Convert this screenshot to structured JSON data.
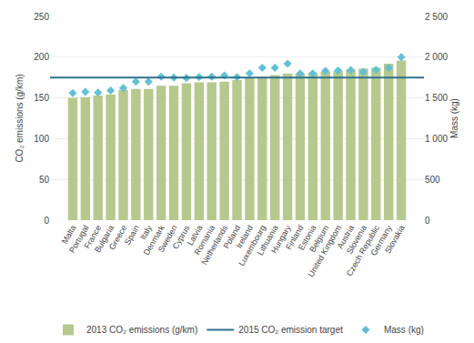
{
  "chart_data": {
    "type": "bar",
    "categories": [
      "Malta",
      "Portugal",
      "France",
      "Bulgaria",
      "Greece",
      "Spain",
      "Italy",
      "Denmark",
      "Sweden",
      "Cyprus",
      "Latvia",
      "Romania",
      "Netherlands",
      "Poland",
      "Ireland",
      "Luxembourg",
      "Lithuania",
      "Hungary",
      "Finland",
      "Estonia",
      "Belgium",
      "United Kingdom",
      "Austria",
      "Slovenia",
      "Czech Republic",
      "Germany",
      "Slovakia"
    ],
    "series": [
      {
        "name": "2013 CO₂ emissions (g/km)",
        "type": "bar",
        "color": "#b5c98e",
        "values": [
          150,
          151,
          153,
          154,
          160,
          161,
          161,
          165,
          165,
          168,
          169,
          169,
          170,
          172,
          175,
          176,
          178,
          180,
          180,
          181,
          182,
          183,
          185,
          186,
          187,
          192,
          196
        ]
      },
      {
        "name": "2015 CO₂ emission target",
        "type": "hline",
        "color": "#2e718e",
        "value": 175
      },
      {
        "name": "Mass (kg)",
        "type": "scatter",
        "marker": "diamond",
        "color": "#62c0d4",
        "axis": "y2",
        "values": [
          1560,
          1575,
          1565,
          1590,
          1620,
          1700,
          1700,
          1760,
          1750,
          1745,
          1755,
          1760,
          1775,
          1755,
          1800,
          1870,
          1870,
          1920,
          1800,
          1800,
          1830,
          1835,
          1840,
          1820,
          1845,
          1870,
          2000
        ]
      }
    ],
    "ylabel": "CO₂ emissions (g/km)",
    "y2label": "Mass (kg)",
    "ylim": [
      0,
      250
    ],
    "yticks": [
      0,
      50,
      100,
      150,
      200,
      250
    ],
    "y2lim": [
      0,
      2500
    ],
    "y2ticks": [
      0,
      500,
      {
        "value": 1000,
        "label": "1 000"
      },
      {
        "value": 1500,
        "label": "1 500"
      },
      {
        "value": 2000,
        "label": "2 000"
      },
      {
        "value": 2500,
        "label": "2 500"
      }
    ],
    "grid": true,
    "legend": "bottom"
  }
}
